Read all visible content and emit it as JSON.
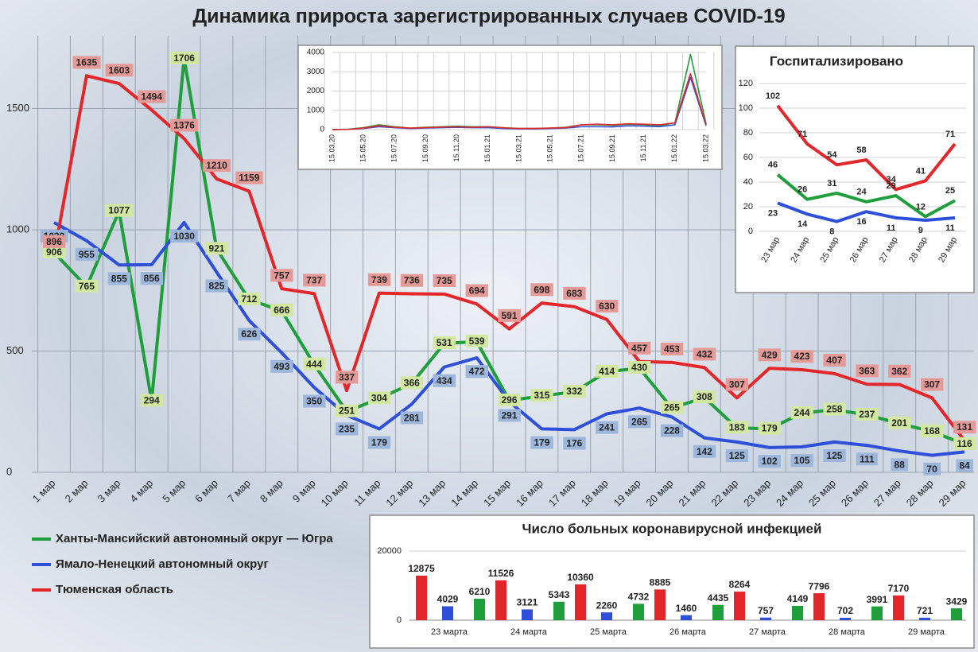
{
  "chart_data": [
    {
      "type": "line",
      "title": "Динамика прироста зарегистрированных случаев COVID-19",
      "categories": [
        "1 мар",
        "2 мар",
        "3 мар",
        "4 мар",
        "5 мар",
        "6 мар",
        "7 мар",
        "8 мар",
        "9 мар",
        "10 мар",
        "11 мар",
        "12 мар",
        "13 мар",
        "14 мар",
        "15 мар",
        "16 мар",
        "17 мар",
        "18 мар",
        "19 мар",
        "20 мар",
        "21 мар",
        "22 мар",
        "23 мар",
        "24 мар",
        "25 мар",
        "26 мар",
        "27 мар",
        "28 мар",
        "29 мар"
      ],
      "series": [
        {
          "name": "Ханты-Мансийский автономный округ — Югра",
          "color": "#1f9e3c",
          "values": [
            906,
            765,
            1077,
            294,
            1706,
            921,
            712,
            666,
            444,
            251,
            304,
            366,
            531,
            539,
            296,
            315,
            332,
            414,
            430,
            265,
            308,
            183,
            179,
            244,
            258,
            237,
            201,
            168,
            116
          ]
        },
        {
          "name": "Ямало-Ненецкий автономный округ",
          "color": "#2e4fd8",
          "values": [
            1030,
            955,
            855,
            856,
            1030,
            825,
            626,
            493,
            350,
            235,
            179,
            281,
            434,
            472,
            291,
            179,
            176,
            241,
            265,
            228,
            142,
            125,
            102,
            105,
            125,
            111,
            88,
            70,
            84
          ]
        },
        {
          "name": "Тюменская область",
          "color": "#e3262a",
          "values": [
            896,
            1635,
            1603,
            1494,
            1376,
            1210,
            1159,
            757,
            737,
            337,
            739,
            736,
            735,
            694,
            591,
            698,
            683,
            630,
            457,
            453,
            432,
            307,
            429,
            423,
            407,
            363,
            362,
            307,
            131
          ]
        }
      ],
      "ylim": [
        0,
        1800
      ],
      "yticks": [
        0,
        500,
        1000,
        1500
      ],
      "grid": true,
      "legend": "bottom-left"
    },
    {
      "type": "line",
      "categories": [
        "15.03.20",
        null,
        "15.05.20",
        null,
        "15.07.20",
        null,
        "15.09.20",
        null,
        "15.11.20",
        null,
        "15.01.21",
        null,
        "15.03.21",
        null,
        "15.05.21",
        null,
        "15.07.21",
        null,
        "15.09.21",
        null,
        "15.11.21",
        null,
        "15.01.22",
        null,
        "15.03.22"
      ],
      "series": [
        {
          "color": "#1f9e3c",
          "values": [
            0,
            20,
            100,
            250,
            150,
            80,
            120,
            150,
            180,
            150,
            150,
            100,
            60,
            60,
            80,
            120,
            250,
            250,
            220,
            280,
            250,
            200,
            350,
            3900,
            300
          ]
        },
        {
          "color": "#2e4fd8",
          "values": [
            0,
            10,
            60,
            150,
            100,
            60,
            80,
            100,
            120,
            100,
            100,
            60,
            40,
            40,
            60,
            80,
            150,
            150,
            140,
            200,
            180,
            150,
            250,
            2700,
            200
          ]
        },
        {
          "color": "#e3262a",
          "values": [
            0,
            10,
            80,
            200,
            120,
            80,
            100,
            130,
            150,
            120,
            150,
            90,
            60,
            60,
            80,
            100,
            250,
            280,
            250,
            300,
            280,
            250,
            350,
            2900,
            250
          ]
        }
      ],
      "ylim": [
        0,
        4000
      ],
      "yticks": [
        0,
        1000,
        2000,
        3000,
        4000
      ],
      "grid": true
    },
    {
      "type": "line",
      "title": "Госпитализировано",
      "categories": [
        "23 мар",
        "24 мар",
        "25 мар",
        "26 мар",
        "27 мар",
        "28 мар",
        "29 мар"
      ],
      "series": [
        {
          "color": "#1f9e3c",
          "values": [
            46,
            26,
            31,
            24,
            29,
            12,
            25
          ]
        },
        {
          "color": "#2e4fd8",
          "values": [
            23,
            14,
            8,
            16,
            11,
            9,
            11
          ]
        },
        {
          "color": "#e3262a",
          "values": [
            102,
            71,
            54,
            58,
            34,
            41,
            71
          ]
        }
      ],
      "ylim": [
        0,
        120
      ],
      "yticks": [
        0,
        20,
        40,
        60,
        80,
        100,
        120
      ],
      "grid": true
    },
    {
      "type": "bar",
      "title": "Число больных коронавирусной инфекцией",
      "categories": [
        "23 марта",
        "24 марта",
        "25 марта",
        "26 марта",
        "27 марта",
        "28 марта",
        "29 марта"
      ],
      "series": [
        {
          "color": "#e3262a",
          "values": [
            12875,
            11526,
            10360,
            8885,
            8264,
            7796,
            7170
          ]
        },
        {
          "color": "#2e4fd8",
          "values": [
            4029,
            3121,
            2260,
            1460,
            757,
            702,
            721
          ]
        },
        {
          "color": "#1f9e3c",
          "values": [
            6210,
            5343,
            4732,
            4435,
            4149,
            3991,
            3429
          ]
        }
      ],
      "ylim": [
        0,
        20000
      ],
      "yticks": [
        0,
        20000
      ],
      "grid": true
    }
  ]
}
